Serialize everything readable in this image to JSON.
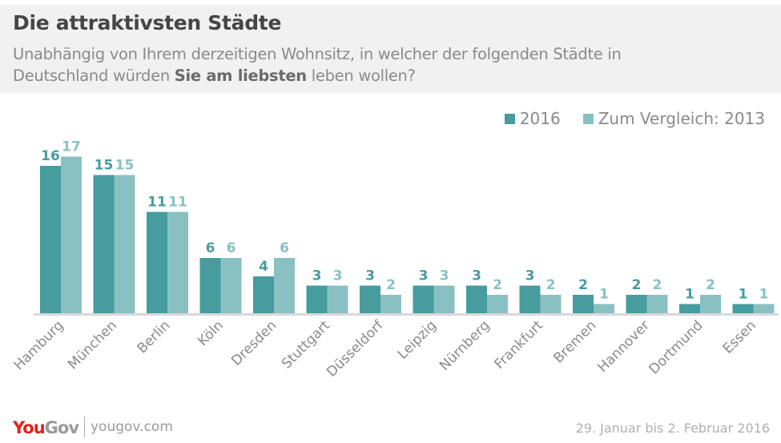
{
  "header": {
    "title": "Die attraktivsten Städte",
    "subtitle_line1": "Unabhängig von Ihrem derzeitigen Wohnsitz, in welcher der folgenden Städte in",
    "subtitle_line2_pre": "Deutschland würden ",
    "subtitle_line2_bold": "Sie am liebsten",
    "subtitle_line2_post": " leben wollen?"
  },
  "legend": [
    {
      "label": "2016",
      "color": "#469c9e"
    },
    {
      "label": "Zum Vergleich: 2013",
      "color": "#89c1c3"
    }
  ],
  "footer": {
    "logo_you": "You",
    "logo_gov": "Gov",
    "url": "yougov.com",
    "date": "29. Januar bis 2. Februar 2016"
  },
  "chart_data": {
    "type": "bar",
    "title": "Die attraktivsten Städte",
    "xlabel": "",
    "ylabel": "",
    "ylim": [
      0,
      17
    ],
    "grid": false,
    "legend_position": "top-right",
    "categories": [
      "Hamburg",
      "München",
      "Berlin",
      "Köln",
      "Dresden",
      "Stuttgart",
      "Düsseldorf",
      "Leipzig",
      "Nürnberg",
      "Frankfurt",
      "Bremen",
      "Hannover",
      "Dortmund",
      "Essen"
    ],
    "series": [
      {
        "name": "2016",
        "color": "#469c9e",
        "values": [
          16,
          15,
          11,
          6,
          4,
          3,
          3,
          3,
          3,
          3,
          2,
          2,
          1,
          1
        ]
      },
      {
        "name": "Zum Vergleich: 2013",
        "color": "#89c1c3",
        "values": [
          17,
          15,
          11,
          6,
          6,
          3,
          2,
          3,
          2,
          2,
          1,
          2,
          2,
          1
        ]
      }
    ]
  }
}
